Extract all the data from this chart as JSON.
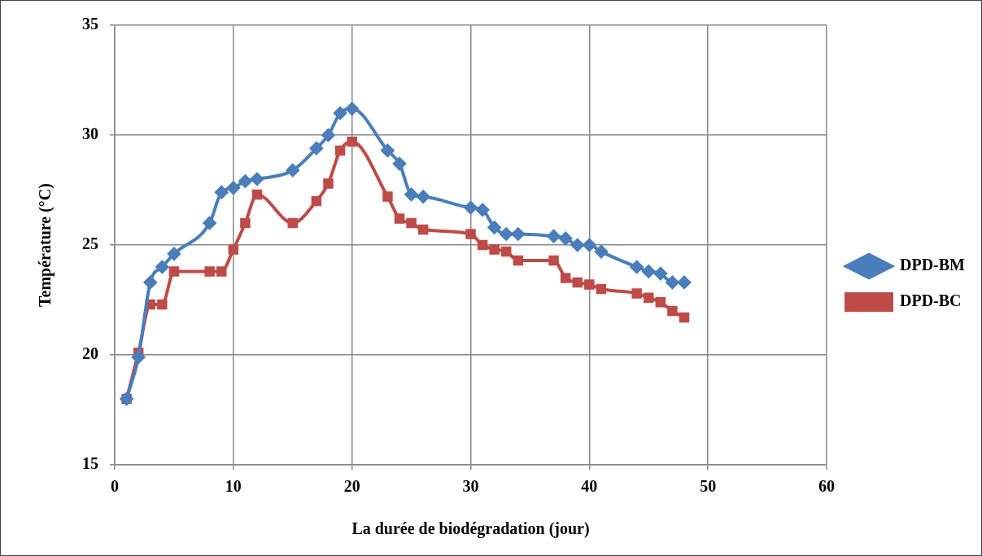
{
  "chart_data": {
    "type": "line",
    "xlabel": "La durée de biodégradation (jour)",
    "ylabel": "Température (°C)",
    "x": [
      1,
      2,
      3,
      4,
      5,
      8,
      9,
      10,
      11,
      12,
      15,
      17,
      18,
      19,
      20,
      23,
      24,
      25,
      26,
      30,
      31,
      32,
      33,
      34,
      37,
      38,
      39,
      40,
      41,
      44,
      45,
      46,
      47,
      48
    ],
    "series": [
      {
        "name": "DPD-BM",
        "color": "#4a7ebb",
        "marker": "diamond",
        "values": [
          18,
          19.9,
          23.3,
          24,
          24.6,
          26,
          27.4,
          27.6,
          27.9,
          28,
          28.4,
          29.4,
          30,
          31,
          31.2,
          29.3,
          28.7,
          27.3,
          27.2,
          26.7,
          26.6,
          25.8,
          25.5,
          25.5,
          25.4,
          25.3,
          25,
          25,
          24.7,
          24,
          23.8,
          23.7,
          23.3,
          23.3
        ]
      },
      {
        "name": "DPD-BC",
        "color": "#be4b48",
        "marker": "square",
        "values": [
          18,
          20.1,
          22.3,
          22.3,
          23.8,
          23.8,
          23.8,
          24.8,
          26,
          27.3,
          26,
          27,
          27.8,
          29.3,
          29.7,
          27.2,
          26.2,
          26,
          25.7,
          25.5,
          25,
          24.8,
          24.7,
          24.3,
          24.3,
          23.5,
          23.3,
          23.2,
          23,
          22.8,
          22.6,
          22.4,
          22,
          21.7
        ]
      }
    ],
    "xlim": [
      0,
      60
    ],
    "xticks": [
      0,
      10,
      20,
      30,
      40,
      50,
      60
    ],
    "ylim": [
      15,
      35
    ],
    "yticks": [
      15,
      20,
      25,
      30,
      35
    ],
    "grid": true,
    "legend": "right",
    "line_style": "solid"
  }
}
